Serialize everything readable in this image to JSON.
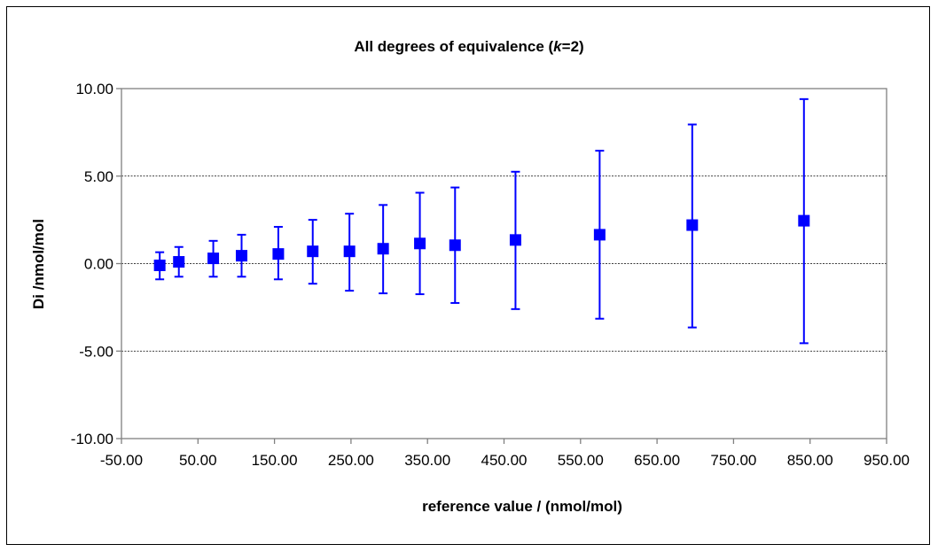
{
  "chart_data": {
    "type": "scatter",
    "title_parts": [
      "All degrees of equivalence (",
      "k",
      "=2)"
    ],
    "xlabel": "reference value / (nmol/mol)",
    "ylabel": "Di /nmol/mol",
    "xlim": [
      -50,
      950
    ],
    "ylim": [
      -10,
      10
    ],
    "x_ticks": [
      -50,
      50,
      150,
      250,
      350,
      450,
      550,
      650,
      750,
      850,
      950
    ],
    "x_tick_labels": [
      "-50.00",
      "50.00",
      "150.00",
      "250.00",
      "350.00",
      "450.00",
      "550.00",
      "650.00",
      "750.00",
      "850.00",
      "950.00"
    ],
    "y_ticks": [
      -10,
      -5,
      0,
      5,
      10
    ],
    "y_tick_labels": [
      "-10.00",
      "-5.00",
      "0.00",
      "5.00",
      "10.00"
    ],
    "grid": "horizontal dashed at -5, 0, 5",
    "marker_color": "#0000ff",
    "points": [
      {
        "x": 0,
        "y": -0.1,
        "hi": 0.65,
        "lo": -0.9
      },
      {
        "x": 25,
        "y": 0.1,
        "hi": 0.95,
        "lo": -0.75
      },
      {
        "x": 70,
        "y": 0.3,
        "hi": 1.3,
        "lo": -0.75
      },
      {
        "x": 107,
        "y": 0.45,
        "hi": 1.65,
        "lo": -0.75
      },
      {
        "x": 155,
        "y": 0.55,
        "hi": 2.1,
        "lo": -0.9
      },
      {
        "x": 200,
        "y": 0.7,
        "hi": 2.5,
        "lo": -1.15
      },
      {
        "x": 248,
        "y": 0.7,
        "hi": 2.85,
        "lo": -1.55
      },
      {
        "x": 292,
        "y": 0.85,
        "hi": 3.35,
        "lo": -1.7
      },
      {
        "x": 340,
        "y": 1.15,
        "hi": 4.05,
        "lo": -1.75
      },
      {
        "x": 386,
        "y": 1.05,
        "hi": 4.35,
        "lo": -2.25
      },
      {
        "x": 465,
        "y": 1.35,
        "hi": 5.25,
        "lo": -2.6
      },
      {
        "x": 575,
        "y": 1.65,
        "hi": 6.45,
        "lo": -3.15
      },
      {
        "x": 696,
        "y": 2.2,
        "hi": 7.95,
        "lo": -3.65
      },
      {
        "x": 842,
        "y": 2.45,
        "hi": 9.4,
        "lo": -4.55
      }
    ]
  }
}
